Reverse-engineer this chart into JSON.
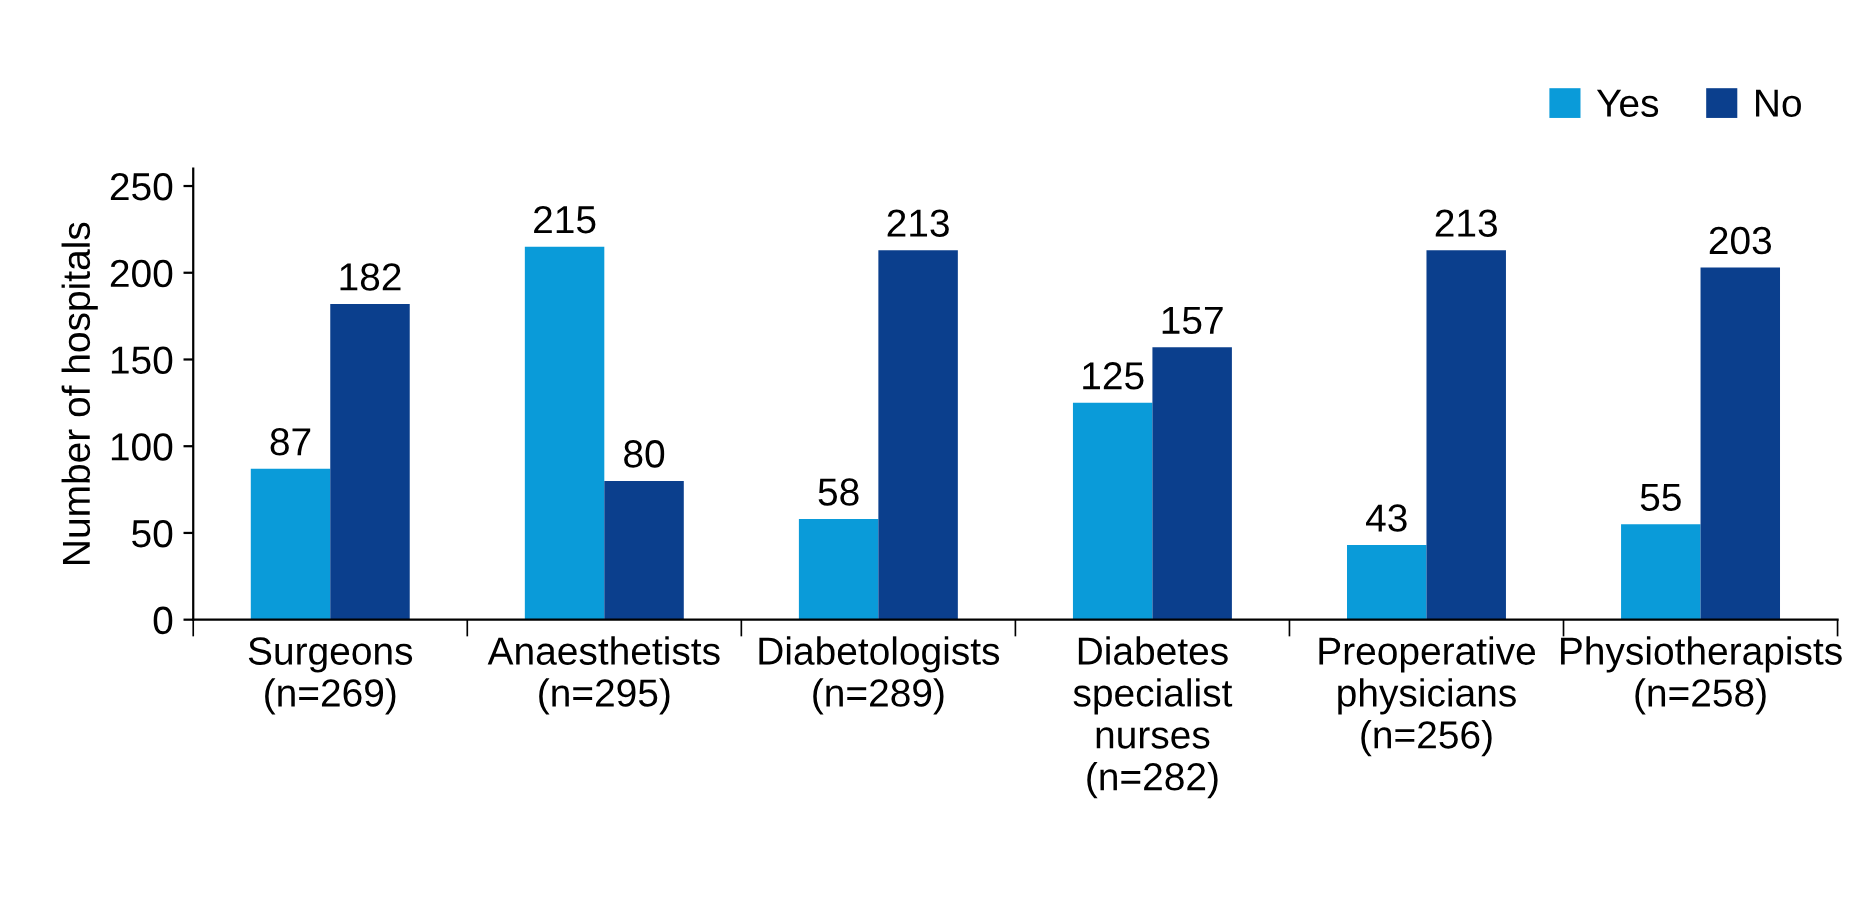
{
  "chart_data": {
    "type": "bar",
    "ylabel": "Number of hospitals",
    "categories": [
      "Surgeons\n(n=269)",
      "Anaesthetists\n(n=295)",
      "Diabetologists\n(n=289)",
      "Diabetes\nspecialist\nnurses\n(n=282)",
      "Preoperative\nphysicians\n(n=256)",
      "Physiotherapists\n(n=258)"
    ],
    "series": [
      {
        "name": "Yes",
        "color": "#0a9bd9",
        "values": [
          87,
          215,
          58,
          125,
          43,
          55
        ]
      },
      {
        "name": "No",
        "color": "#0b3f8d",
        "values": [
          182,
          80,
          213,
          157,
          213,
          203
        ]
      }
    ],
    "ylim": [
      0,
      260
    ],
    "yticks": [
      0,
      50,
      100,
      150,
      200,
      250
    ],
    "data_labels": true,
    "grid": false,
    "legend": "top right"
  }
}
